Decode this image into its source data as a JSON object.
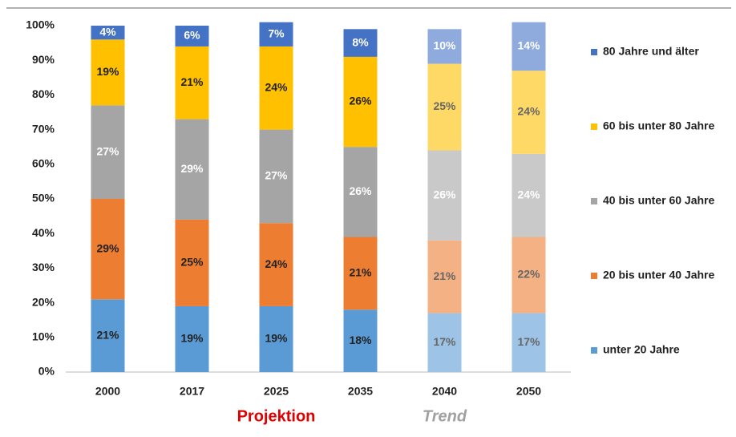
{
  "chart_data": {
    "type": "stacked_bar",
    "categories": [
      "2000",
      "2017",
      "2025",
      "2035",
      "2040",
      "2050"
    ],
    "series": [
      {
        "name": "unter 20 Jahre",
        "color": "#5b9bd5",
        "colors": [
          "#5b9bd5",
          "#5b9bd5",
          "#5b9bd5",
          "#5b9bd5",
          "#9dc3e6",
          "#9dc3e6"
        ],
        "values": [
          21,
          19,
          19,
          18,
          17,
          17
        ],
        "value_labels": [
          "21%",
          "19%",
          "19%",
          "18%",
          "17%",
          "17%"
        ]
      },
      {
        "name": "20 bis unter 40 Jahre",
        "color": "#ed7d31",
        "colors": [
          "#ed7d31",
          "#ed7d31",
          "#ed7d31",
          "#ed7d31",
          "#f4b183",
          "#f4b183"
        ],
        "values": [
          29,
          25,
          24,
          21,
          21,
          22
        ],
        "value_labels": [
          "29%",
          "25%",
          "24%",
          "21%",
          "21%",
          "22%"
        ]
      },
      {
        "name": "40 bis unter 60 Jahre",
        "color": "#a5a5a5",
        "colors": [
          "#a5a5a5",
          "#a5a5a5",
          "#a5a5a5",
          "#a5a5a5",
          "#c9c9c9",
          "#c9c9c9"
        ],
        "values": [
          27,
          29,
          27,
          26,
          26,
          24
        ],
        "value_labels": [
          "27%",
          "29%",
          "27%",
          "26%",
          "26%",
          "24%"
        ]
      },
      {
        "name": "60 bis unter 80 Jahre",
        "color": "#ffc000",
        "colors": [
          "#ffc000",
          "#ffc000",
          "#ffc000",
          "#ffc000",
          "#ffd966",
          "#ffd966"
        ],
        "values": [
          19,
          21,
          24,
          26,
          25,
          24
        ],
        "value_labels": [
          "19%",
          "21%",
          "24%",
          "26%",
          "25%",
          "24%"
        ]
      },
      {
        "name": "80 Jahre und älter",
        "color": "#4472c4",
        "colors": [
          "#4472c4",
          "#4472c4",
          "#4472c4",
          "#4472c4",
          "#8faadc",
          "#8faadc"
        ],
        "values": [
          4,
          6,
          7,
          8,
          10,
          14
        ],
        "value_labels": [
          "4%",
          "6%",
          "7%",
          "8%",
          "10%",
          "14%"
        ]
      }
    ],
    "ylim": [
      0,
      100
    ],
    "yticks": [
      {
        "value": 0,
        "label": "0%"
      },
      {
        "value": 10,
        "label": "10%"
      },
      {
        "value": 20,
        "label": "20%"
      },
      {
        "value": 30,
        "label": "30%"
      },
      {
        "value": 40,
        "label": "40%"
      },
      {
        "value": 50,
        "label": "50%"
      },
      {
        "value": 60,
        "label": "60%"
      },
      {
        "value": 70,
        "label": "70%"
      },
      {
        "value": 80,
        "label": "80%"
      },
      {
        "value": 90,
        "label": "90%"
      },
      {
        "value": 100,
        "label": "100%"
      }
    ],
    "grid": false,
    "legend": "right",
    "annotations": [
      {
        "text": "Projektion",
        "color": "#e00000"
      },
      {
        "text": "Trend",
        "color": "#a0a0a0"
      }
    ]
  }
}
